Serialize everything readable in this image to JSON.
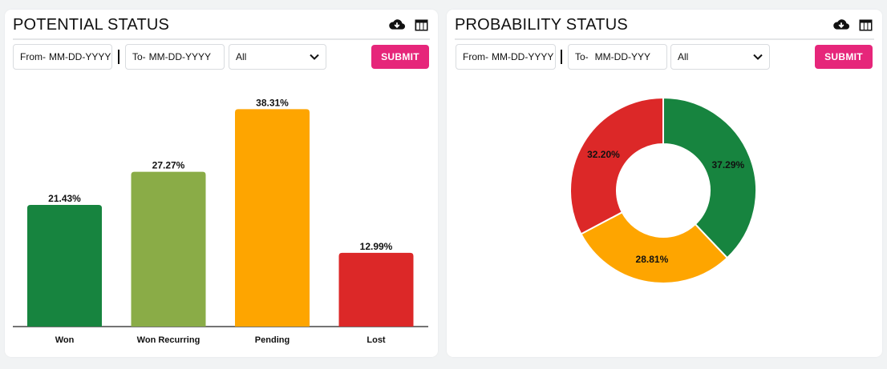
{
  "left": {
    "title": "POTENTIAL STATUS",
    "from_label": "From-",
    "from_placeholder": "MM-DD-YYYY",
    "to_label": "To-",
    "to_placeholder": "MM-DD-YYYY",
    "select_value": "All",
    "submit_label": "SUBMIT"
  },
  "right": {
    "title": "PROBABILITY STATUS",
    "from_label": "From-",
    "from_placeholder": "MM-DD-YYYY",
    "to_label": "To-",
    "to_placeholder": "MM-DD-YYY",
    "select_value": "All",
    "submit_label": "SUBMIT"
  },
  "icons": {
    "download": "cloud-download-icon",
    "table": "table-icon"
  },
  "colors": {
    "won": "#17843f",
    "won_recurring": "#8aac47",
    "pending": "#fea500",
    "lost": "#dc2828",
    "submit": "#e6267a"
  },
  "chart_data": [
    {
      "type": "bar",
      "categories": [
        "Won",
        "Won Recurring",
        "Pending",
        "Lost"
      ],
      "values": [
        21.43,
        27.27,
        38.31,
        12.99
      ],
      "data_labels": [
        "21.43%",
        "27.27%",
        "38.31%",
        "12.99%"
      ],
      "colors": [
        "#17843f",
        "#8aac47",
        "#fea500",
        "#dc2828"
      ],
      "ylim": [
        0,
        44
      ],
      "grid": false,
      "legend": "none"
    },
    {
      "type": "pie",
      "subtype": "donut",
      "values": [
        37.29,
        28.81,
        32.2
      ],
      "data_labels": [
        "37.29%",
        "28.81%",
        "32.20%"
      ],
      "colors": [
        "#17843f",
        "#fea500",
        "#dc2828"
      ],
      "legend": "none"
    }
  ]
}
